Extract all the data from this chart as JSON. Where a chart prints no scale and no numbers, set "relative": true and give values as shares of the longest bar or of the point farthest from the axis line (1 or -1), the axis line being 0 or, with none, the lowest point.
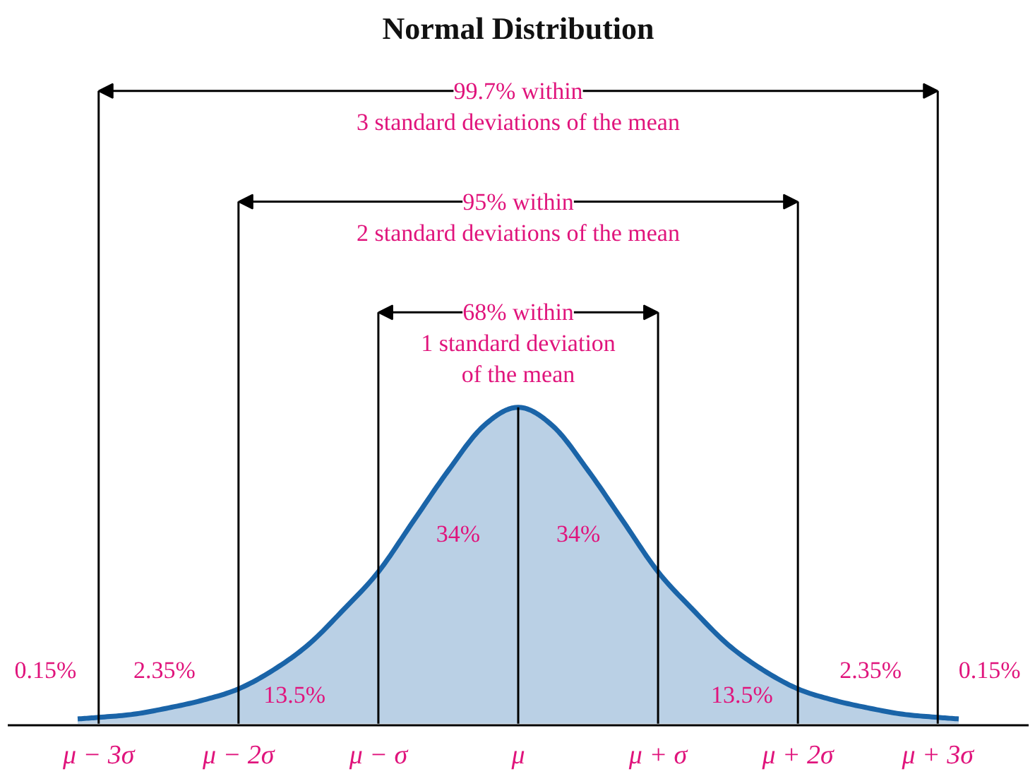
{
  "chart_data": {
    "type": "area",
    "title": "Normal Distribution",
    "relative": true,
    "tick_labels": "x",
    "x": [
      -3.15,
      -3,
      -2.75,
      -2.5,
      -2.25,
      -2,
      -1.75,
      -1.5,
      -1.25,
      -1,
      -0.75,
      -0.5,
      -0.25,
      0,
      0.25,
      0.5,
      0.75,
      1,
      1.25,
      1.5,
      1.75,
      2,
      2.25,
      2.5,
      2.75,
      3,
      3.15
    ],
    "xlim": [
      -3.65,
      3.65
    ],
    "xticks": [
      {
        "value": -3,
        "label": "μ − 3σ"
      },
      {
        "value": -2,
        "label": "μ − 2σ"
      },
      {
        "value": -1,
        "label": "μ − σ"
      },
      {
        "value": 0,
        "label": "μ"
      },
      {
        "value": 1,
        "label": "μ + σ"
      },
      {
        "value": 2,
        "label": "μ + 2σ"
      },
      {
        "value": 3,
        "label": "μ + 3σ"
      }
    ],
    "series": [
      {
        "color": "#1a64a8",
        "values": [
          0.015,
          0.02,
          0.03,
          0.05,
          0.075,
          0.11,
          0.17,
          0.25,
          0.36,
          0.48,
          0.64,
          0.8,
          0.94,
          1,
          0.94,
          0.8,
          0.64,
          0.48,
          0.36,
          0.25,
          0.17,
          0.11,
          0.075,
          0.05,
          0.03,
          0.02,
          0.015
        ]
      }
    ],
    "ref_lines": [
      {
        "axis": "x",
        "value": -3,
        "color": "#000000"
      },
      {
        "axis": "x",
        "value": -2,
        "color": "#000000"
      },
      {
        "axis": "x",
        "value": -1,
        "color": "#000000"
      },
      {
        "axis": "x",
        "value": 0,
        "color": "#000000"
      },
      {
        "axis": "x",
        "value": 1,
        "color": "#000000"
      },
      {
        "axis": "x",
        "value": 2,
        "color": "#000000"
      },
      {
        "axis": "x",
        "value": 3,
        "color": "#000000"
      }
    ],
    "annotations": [
      "99.7% within\n3 standard deviations of the mean",
      "95% within\n2 standard deviations of the mean",
      "68% within\n1 standard deviation\nof the mean",
      "34%",
      "34%",
      "13.5%",
      "13.5%",
      "2.35%",
      "2.35%",
      "0.15%",
      "0.15%"
    ]
  }
}
